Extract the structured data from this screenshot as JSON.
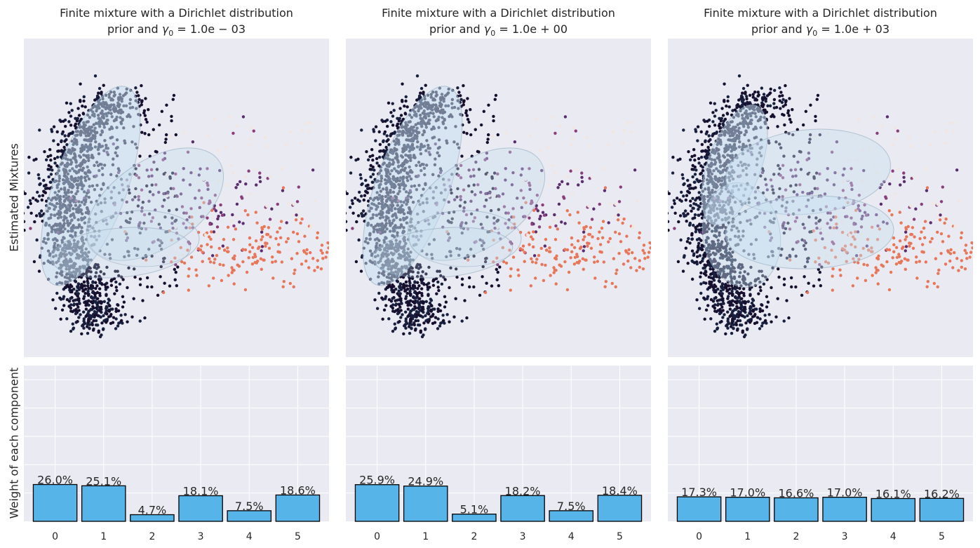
{
  "row_labels": {
    "top": "Estimated Mixtures",
    "bottom": "Weight of each component"
  },
  "colors": {
    "axes_bg": "#eaeaf2",
    "grid": "#ffffff",
    "bar_fill": "#56b4e9",
    "bar_edge": "#000000",
    "ellipse_fill": "#c6dff0",
    "ellipse_edge": "#8fa8bc",
    "cluster_colors": [
      "#170f2e",
      "#18203f",
      "#5b2d6e",
      "#8a3f7c",
      "#e87659",
      "#f2e6e0"
    ]
  },
  "panels": [
    {
      "title_line1": "Finite mixture with a Dirichlet distribution",
      "title_line2_prefix": "prior and ",
      "title_gamma": "γ",
      "title_sub": "0",
      "title_value": " = 1.0e − 03",
      "labels": [
        "26.0%",
        "25.1%",
        "4.7%",
        "18.1%",
        "7.5%",
        "18.6%"
      ]
    },
    {
      "title_line1": "Finite mixture with a Dirichlet distribution",
      "title_line2_prefix": "prior and ",
      "title_gamma": "γ",
      "title_sub": "0",
      "title_value": " = 1.0e + 00",
      "labels": [
        "25.9%",
        "24.9%",
        "5.1%",
        "18.2%",
        "7.5%",
        "18.4%"
      ]
    },
    {
      "title_line1": "Finite mixture with a Dirichlet distribution",
      "title_line2_prefix": "prior and ",
      "title_gamma": "γ",
      "title_sub": "0",
      "title_value": " = 1.0e + 03",
      "labels": [
        "17.3%",
        "17.0%",
        "16.6%",
        "17.0%",
        "16.1%",
        "16.2%"
      ]
    }
  ],
  "chart_data": [
    {
      "type": "scatter",
      "title": "Finite mixture with a Dirichlet distribution prior and γ0 = 1.0e − 03",
      "ylabel": "Estimated Mixtures",
      "description_of_series": "colored sample points with covariance ellipses of mixture components"
    },
    {
      "type": "bar",
      "ylabel": "Weight of each component",
      "categories": [
        "0",
        "1",
        "2",
        "3",
        "4",
        "5"
      ],
      "values": [
        0.26,
        0.251,
        0.047,
        0.181,
        0.075,
        0.186
      ],
      "labels": [
        "26.0%",
        "25.1%",
        "4.7%",
        "18.1%",
        "7.5%",
        "18.6%"
      ],
      "ylim": [
        0,
        1.1
      ],
      "grid": true
    },
    {
      "type": "scatter",
      "title": "Finite mixture with a Dirichlet distribution prior and γ0 = 1.0e + 00"
    },
    {
      "type": "bar",
      "categories": [
        "0",
        "1",
        "2",
        "3",
        "4",
        "5"
      ],
      "values": [
        0.259,
        0.249,
        0.051,
        0.182,
        0.075,
        0.184
      ],
      "labels": [
        "25.9%",
        "24.9%",
        "5.1%",
        "18.2%",
        "7.5%",
        "18.4%"
      ],
      "ylim": [
        0,
        1.1
      ],
      "grid": true
    },
    {
      "type": "scatter",
      "title": "Finite mixture with a Dirichlet distribution prior and γ0 = 1.0e + 03"
    },
    {
      "type": "bar",
      "categories": [
        "0",
        "1",
        "2",
        "3",
        "4",
        "5"
      ],
      "values": [
        0.173,
        0.17,
        0.166,
        0.17,
        0.161,
        0.162
      ],
      "labels": [
        "17.3%",
        "17.0%",
        "16.6%",
        "17.0%",
        "16.1%",
        "16.2%"
      ],
      "ylim": [
        0,
        1.1
      ],
      "grid": true
    }
  ]
}
